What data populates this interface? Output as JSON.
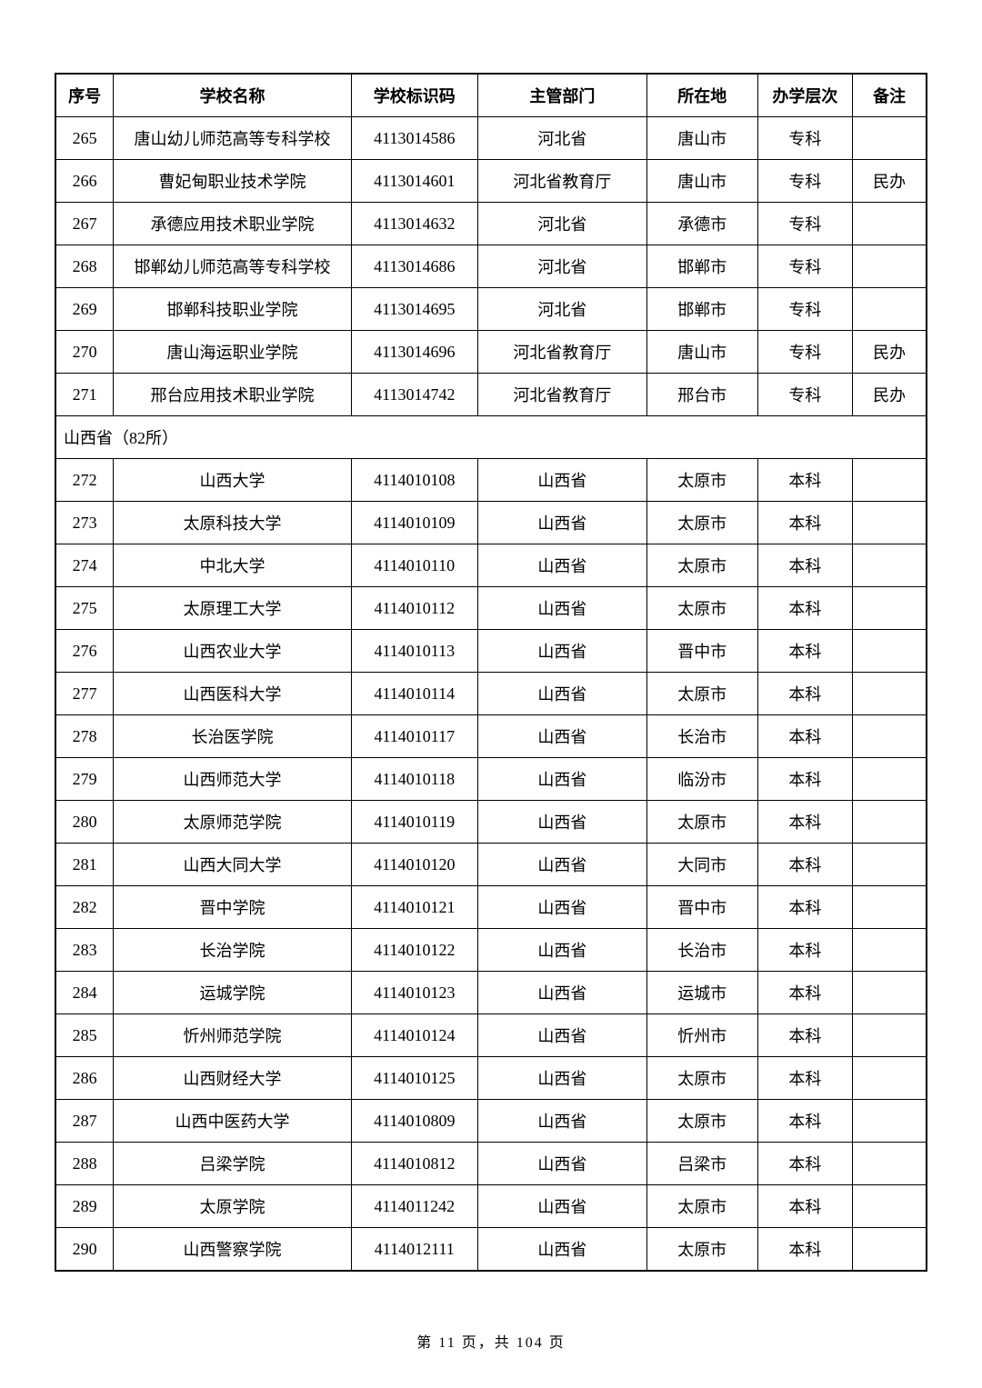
{
  "table": {
    "headers": {
      "seq": "序号",
      "name": "学校名称",
      "code": "学校标识码",
      "dept": "主管部门",
      "location": "所在地",
      "level": "办学层次",
      "remark": "备注"
    },
    "section1_label": "山西省（82所）",
    "rows_before_section": [
      {
        "seq": "265",
        "name": "唐山幼儿师范高等专科学校",
        "code": "4113014586",
        "dept": "河北省",
        "location": "唐山市",
        "level": "专科",
        "remark": ""
      },
      {
        "seq": "266",
        "name": "曹妃甸职业技术学院",
        "code": "4113014601",
        "dept": "河北省教育厅",
        "location": "唐山市",
        "level": "专科",
        "remark": "民办"
      },
      {
        "seq": "267",
        "name": "承德应用技术职业学院",
        "code": "4113014632",
        "dept": "河北省",
        "location": "承德市",
        "level": "专科",
        "remark": ""
      },
      {
        "seq": "268",
        "name": "邯郸幼儿师范高等专科学校",
        "code": "4113014686",
        "dept": "河北省",
        "location": "邯郸市",
        "level": "专科",
        "remark": ""
      },
      {
        "seq": "269",
        "name": "邯郸科技职业学院",
        "code": "4113014695",
        "dept": "河北省",
        "location": "邯郸市",
        "level": "专科",
        "remark": ""
      },
      {
        "seq": "270",
        "name": "唐山海运职业学院",
        "code": "4113014696",
        "dept": "河北省教育厅",
        "location": "唐山市",
        "level": "专科",
        "remark": "民办"
      },
      {
        "seq": "271",
        "name": "邢台应用技术职业学院",
        "code": "4113014742",
        "dept": "河北省教育厅",
        "location": "邢台市",
        "level": "专科",
        "remark": "民办"
      }
    ],
    "rows_after_section": [
      {
        "seq": "272",
        "name": "山西大学",
        "code": "4114010108",
        "dept": "山西省",
        "location": "太原市",
        "level": "本科",
        "remark": ""
      },
      {
        "seq": "273",
        "name": "太原科技大学",
        "code": "4114010109",
        "dept": "山西省",
        "location": "太原市",
        "level": "本科",
        "remark": ""
      },
      {
        "seq": "274",
        "name": "中北大学",
        "code": "4114010110",
        "dept": "山西省",
        "location": "太原市",
        "level": "本科",
        "remark": ""
      },
      {
        "seq": "275",
        "name": "太原理工大学",
        "code": "4114010112",
        "dept": "山西省",
        "location": "太原市",
        "level": "本科",
        "remark": ""
      },
      {
        "seq": "276",
        "name": "山西农业大学",
        "code": "4114010113",
        "dept": "山西省",
        "location": "晋中市",
        "level": "本科",
        "remark": ""
      },
      {
        "seq": "277",
        "name": "山西医科大学",
        "code": "4114010114",
        "dept": "山西省",
        "location": "太原市",
        "level": "本科",
        "remark": ""
      },
      {
        "seq": "278",
        "name": "长治医学院",
        "code": "4114010117",
        "dept": "山西省",
        "location": "长治市",
        "level": "本科",
        "remark": ""
      },
      {
        "seq": "279",
        "name": "山西师范大学",
        "code": "4114010118",
        "dept": "山西省",
        "location": "临汾市",
        "level": "本科",
        "remark": ""
      },
      {
        "seq": "280",
        "name": "太原师范学院",
        "code": "4114010119",
        "dept": "山西省",
        "location": "太原市",
        "level": "本科",
        "remark": ""
      },
      {
        "seq": "281",
        "name": "山西大同大学",
        "code": "4114010120",
        "dept": "山西省",
        "location": "大同市",
        "level": "本科",
        "remark": ""
      },
      {
        "seq": "282",
        "name": "晋中学院",
        "code": "4114010121",
        "dept": "山西省",
        "location": "晋中市",
        "level": "本科",
        "remark": ""
      },
      {
        "seq": "283",
        "name": "长治学院",
        "code": "4114010122",
        "dept": "山西省",
        "location": "长治市",
        "level": "本科",
        "remark": ""
      },
      {
        "seq": "284",
        "name": "运城学院",
        "code": "4114010123",
        "dept": "山西省",
        "location": "运城市",
        "level": "本科",
        "remark": ""
      },
      {
        "seq": "285",
        "name": "忻州师范学院",
        "code": "4114010124",
        "dept": "山西省",
        "location": "忻州市",
        "level": "本科",
        "remark": ""
      },
      {
        "seq": "286",
        "name": "山西财经大学",
        "code": "4114010125",
        "dept": "山西省",
        "location": "太原市",
        "level": "本科",
        "remark": ""
      },
      {
        "seq": "287",
        "name": "山西中医药大学",
        "code": "4114010809",
        "dept": "山西省",
        "location": "太原市",
        "level": "本科",
        "remark": ""
      },
      {
        "seq": "288",
        "name": "吕梁学院",
        "code": "4114010812",
        "dept": "山西省",
        "location": "吕梁市",
        "level": "本科",
        "remark": ""
      },
      {
        "seq": "289",
        "name": "太原学院",
        "code": "4114011242",
        "dept": "山西省",
        "location": "太原市",
        "level": "本科",
        "remark": ""
      },
      {
        "seq": "290",
        "name": "山西警察学院",
        "code": "4114012111",
        "dept": "山西省",
        "location": "太原市",
        "level": "本科",
        "remark": ""
      }
    ]
  },
  "footer": {
    "text": "第 11 页，共 104 页"
  }
}
